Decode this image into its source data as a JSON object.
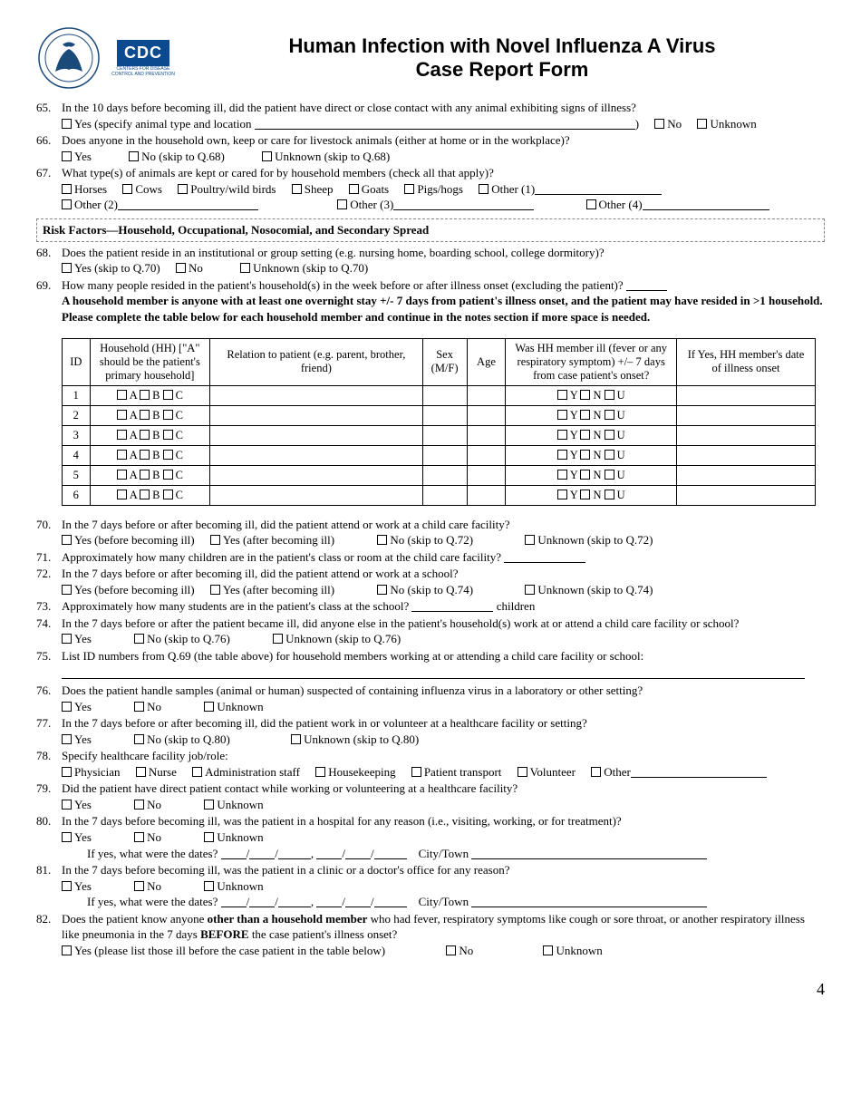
{
  "header": {
    "title_line1": "Human Infection with Novel Influenza A Virus",
    "title_line2": "Case Report Form",
    "cdc_label": "CDC"
  },
  "page_number": "4",
  "q65": {
    "num": "65.",
    "text": "In the 10 days before becoming ill, did the patient have direct or close contact with any animal exhibiting signs of illness?",
    "opt_yes": "Yes (specify animal type and location",
    "opt_no": "No",
    "opt_unknown": "Unknown",
    "paren_close": ")"
  },
  "q66": {
    "num": "66.",
    "text": "Does anyone in the household own, keep or care for livestock animals (either at home or in the workplace)?",
    "opt_yes": "Yes",
    "opt_no": "No (skip to Q.68)",
    "opt_unknown": "Unknown (skip to Q.68)"
  },
  "q67": {
    "num": "67.",
    "text": "What type(s) of animals are kept or cared for by household members (check all that apply)?",
    "opts": {
      "horses": "Horses",
      "cows": "Cows",
      "poultry": "Poultry/wild birds",
      "sheep": "Sheep",
      "goats": "Goats",
      "pigs": "Pigs/hogs",
      "other1": "Other (1)",
      "other2": "Other (2)",
      "other3": "Other (3)",
      "other4": "Other (4)"
    }
  },
  "section_bar": "Risk Factors—Household, Occupational, Nosocomial, and Secondary Spread",
  "q68": {
    "num": "68.",
    "text": "Does the patient reside in an institutional or group setting (e.g. nursing home, boarding school, college dormitory)?",
    "opt_yes": "Yes (skip to Q.70)",
    "opt_no": "No",
    "opt_unknown": "Unknown (skip to Q.70)"
  },
  "q69": {
    "num": "69.",
    "text": "How many people resided in the patient's household(s) in the week before or after illness onset (excluding the patient)?",
    "note": "A household member is anyone with at least one overnight stay +/- 7 days from patient's illness onset, and the patient may have resided in >1 household. Please complete the table below for each household member and continue in the notes section if more space is needed."
  },
  "hh_table": {
    "headers": {
      "id": "ID",
      "hh": "Household (HH) [\"A\" should be the patient's primary household]",
      "rel": "Relation to patient (e.g. parent, brother, friend)",
      "sex": "Sex (M/F)",
      "age": "Age",
      "ill": "Was HH member ill (fever or any respiratory symptom) +/– 7 days from case patient's onset?",
      "date": "If Yes, HH member's date of illness onset"
    },
    "row_ids": [
      "1",
      "2",
      "3",
      "4",
      "5",
      "6"
    ],
    "hh_opts": {
      "a": "A",
      "b": "B",
      "c": "C"
    },
    "ill_opts": {
      "y": "Y",
      "n": "N",
      "u": "U"
    }
  },
  "q70": {
    "num": "70.",
    "text": "In the 7 days before or after becoming ill, did the patient attend or work at a child care facility?",
    "opt_yes_before": "Yes (before becoming ill)",
    "opt_yes_after": "Yes (after becoming ill)",
    "opt_no": "No (skip to Q.72)",
    "opt_unknown": "Unknown (skip to Q.72)"
  },
  "q71": {
    "num": "71.",
    "text": "Approximately how many children are in the patient's class or room at the child care facility?"
  },
  "q72": {
    "num": "72.",
    "text": "In the 7 days before or after becoming ill, did the patient attend or work at a school?",
    "opt_yes_before": "Yes (before becoming ill)",
    "opt_yes_after": "Yes (after becoming ill)",
    "opt_no": "No (skip to Q.74)",
    "opt_unknown": "Unknown (skip to Q.74)"
  },
  "q73": {
    "num": "73.",
    "text_a": "Approximately how many students are in the patient's class at the school?",
    "text_b": " children"
  },
  "q74": {
    "num": "74.",
    "text": "In the 7 days before or after the patient became ill, did anyone else in the patient's household(s) work at or attend a child care facility or school?",
    "opt_yes": "Yes",
    "opt_no": "No (skip to Q.76)",
    "opt_unknown": "Unknown (skip to Q.76)"
  },
  "q75": {
    "num": "75.",
    "text": "List ID numbers from Q.69 (the table above) for household members working at or attending a child care facility or school:"
  },
  "q76": {
    "num": "76.",
    "text": "Does the patient handle samples (animal or human) suspected of containing influenza virus in a laboratory or other setting?",
    "opt_yes": "Yes",
    "opt_no": "No",
    "opt_unknown": "Unknown"
  },
  "q77": {
    "num": "77.",
    "text": "In the 7 days before or after becoming ill, did the patient work in or volunteer at a healthcare facility or setting?",
    "opt_yes": "Yes",
    "opt_no": "No (skip to Q.80)",
    "opt_unknown": "Unknown (skip to Q.80)"
  },
  "q78": {
    "num": "78.",
    "text": "Specify healthcare facility job/role:",
    "opts": {
      "physician": "Physician",
      "nurse": "Nurse",
      "admin": "Administration staff",
      "housekeeping": "Housekeeping",
      "transport": "Patient transport",
      "volunteer": "Volunteer",
      "other": "Other"
    }
  },
  "q79": {
    "num": "79.",
    "text": "Did the patient have direct patient contact while working or volunteering at a healthcare facility?",
    "opt_yes": "Yes",
    "opt_no": "No",
    "opt_unknown": "Unknown"
  },
  "q80": {
    "num": "80.",
    "text": "In the 7 days before becoming ill, was the patient in a hospital for any reason (i.e., visiting, working, or for treatment)?",
    "opt_yes": "Yes",
    "opt_no": "No",
    "opt_unknown": "Unknown",
    "dates_prefix": "If yes, what were the dates?",
    "city_label": "City/Town"
  },
  "q81": {
    "num": "81.",
    "text": "In the 7 days before becoming ill, was the patient in a clinic or a doctor's office for any reason?",
    "opt_yes": "Yes",
    "opt_no": "No",
    "opt_unknown": "Unknown",
    "dates_prefix": "If yes, what were the dates?",
    "city_label": "City/Town"
  },
  "q82": {
    "num": "82.",
    "text_a": "Does the patient know anyone ",
    "text_b": "other than a household member",
    "text_c": " who had fever, respiratory symptoms like cough or sore throat, or another respiratory illness like pneumonia in the 7 days ",
    "text_d": "BEFORE",
    "text_e": " the case patient's illness onset?",
    "opt_yes": "Yes (please list those ill before the case patient in the table below)",
    "opt_no": "No",
    "opt_unknown": "Unknown"
  }
}
